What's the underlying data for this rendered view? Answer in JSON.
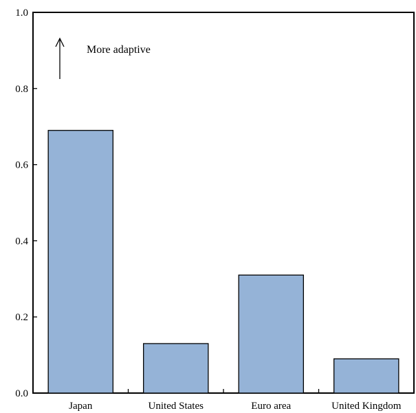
{
  "chart_data": {
    "type": "bar",
    "title": "",
    "xlabel": "",
    "ylabel": "",
    "categories": [
      "Japan",
      "United States",
      "Euro area",
      "United Kingdom"
    ],
    "values": [
      0.69,
      0.13,
      0.31,
      0.09
    ],
    "ylim": [
      0.0,
      1.0
    ],
    "yticks": [
      "0.0",
      "0.2",
      "0.4",
      "0.6",
      "0.8",
      "1.0"
    ],
    "grid": false,
    "legend": "none",
    "annotation": "More adaptive",
    "bar_color": "#95b3d7",
    "bar_edge_color": "#000000"
  }
}
